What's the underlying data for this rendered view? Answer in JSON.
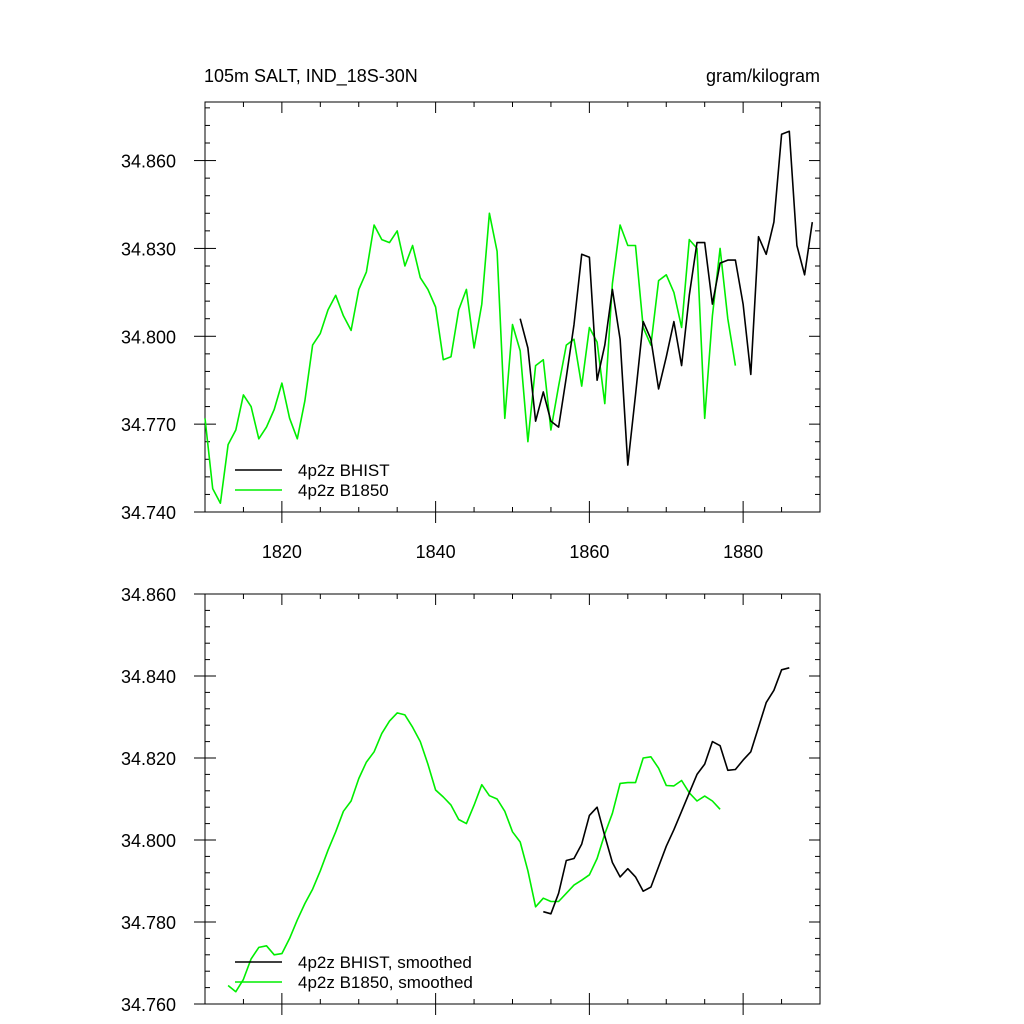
{
  "chart_data": [
    {
      "type": "line",
      "title_left": "105m SALT, IND_18S-30N",
      "title_right": "gram/kilogram",
      "xlim": [
        1810,
        1890
      ],
      "ylim": [
        34.74,
        34.88
      ],
      "x_ticks": [
        1820,
        1840,
        1860,
        1880
      ],
      "x_tick_labels": [
        "1820",
        "1840",
        "1860",
        "1880"
      ],
      "y_ticks": [
        34.74,
        34.77,
        34.8,
        34.83,
        34.86
      ],
      "y_tick_labels": [
        "34.740",
        "34.770",
        "34.800",
        "34.830",
        "34.860"
      ],
      "legend_position": "bottom-left",
      "series": [
        {
          "name": "4p2z BHIST",
          "color": "#000000",
          "x": [
            1851,
            1852,
            1853,
            1854,
            1855,
            1856,
            1857,
            1858,
            1859,
            1860,
            1861,
            1862,
            1863,
            1864,
            1865,
            1866,
            1867,
            1868,
            1869,
            1870,
            1871,
            1872,
            1873,
            1874,
            1875,
            1876,
            1877,
            1878,
            1879,
            1880,
            1881,
            1882,
            1883,
            1884,
            1885,
            1886,
            1887,
            1888,
            1889
          ],
          "values": [
            34.806,
            34.796,
            34.771,
            34.781,
            34.771,
            34.769,
            34.786,
            34.804,
            34.828,
            34.827,
            34.785,
            34.797,
            34.816,
            34.799,
            34.756,
            34.78,
            34.805,
            34.799,
            34.782,
            34.793,
            34.805,
            34.79,
            34.814,
            34.832,
            34.832,
            34.811,
            34.825,
            34.826,
            34.826,
            34.811,
            34.787,
            34.834,
            34.828,
            34.839,
            34.869,
            34.87,
            34.831,
            34.821,
            34.839
          ]
        },
        {
          "name": "4p2z B1850",
          "color": "#00ee00",
          "x": [
            1810,
            1811,
            1812,
            1813,
            1814,
            1815,
            1816,
            1817,
            1818,
            1819,
            1820,
            1821,
            1822,
            1823,
            1824,
            1825,
            1826,
            1827,
            1828,
            1829,
            1830,
            1831,
            1832,
            1833,
            1834,
            1835,
            1836,
            1837,
            1838,
            1839,
            1840,
            1841,
            1842,
            1843,
            1844,
            1845,
            1846,
            1847,
            1848,
            1849,
            1850,
            1851,
            1852,
            1853,
            1854,
            1855,
            1856,
            1857,
            1858,
            1859,
            1860,
            1861,
            1862,
            1863,
            1864,
            1865,
            1866,
            1867,
            1868,
            1869,
            1870,
            1871,
            1872,
            1873,
            1874,
            1875,
            1876,
            1877,
            1878,
            1879
          ],
          "values": [
            34.772,
            34.748,
            34.743,
            34.763,
            34.768,
            34.78,
            34.776,
            34.765,
            34.769,
            34.775,
            34.784,
            34.772,
            34.765,
            34.778,
            34.797,
            34.801,
            34.809,
            34.814,
            34.807,
            34.802,
            34.816,
            34.822,
            34.838,
            34.833,
            34.832,
            34.836,
            34.824,
            34.831,
            34.82,
            34.816,
            34.81,
            34.792,
            34.793,
            34.809,
            34.816,
            34.796,
            34.811,
            34.842,
            34.829,
            34.772,
            34.804,
            34.795,
            34.764,
            34.79,
            34.792,
            34.768,
            34.783,
            34.797,
            34.799,
            34.783,
            34.803,
            34.798,
            34.777,
            34.818,
            34.838,
            34.831,
            34.831,
            34.803,
            34.797,
            34.819,
            34.821,
            34.815,
            34.803,
            34.833,
            34.83,
            34.772,
            34.807,
            34.83,
            34.806,
            34.79
          ]
        }
      ]
    },
    {
      "type": "line",
      "xlim": [
        1810,
        1890
      ],
      "ylim": [
        34.76,
        34.86
      ],
      "x_ticks": [
        1820,
        1840,
        1860,
        1880
      ],
      "y_ticks": [
        34.76,
        34.78,
        34.8,
        34.82,
        34.84,
        34.86
      ],
      "y_tick_labels": [
        "34.760",
        "34.780",
        "34.800",
        "34.820",
        "34.840",
        "34.860"
      ],
      "legend_position": "bottom-left",
      "series": [
        {
          "name": "4p2z BHIST, smoothed",
          "color": "#000000",
          "x": [
            1854,
            1855,
            1856,
            1857,
            1858,
            1859,
            1860,
            1861,
            1862,
            1863,
            1864,
            1865,
            1866,
            1867,
            1868,
            1869,
            1870,
            1871,
            1872,
            1873,
            1874,
            1875,
            1876,
            1877,
            1878,
            1879,
            1880,
            1881,
            1882,
            1883,
            1884,
            1885,
            1886
          ],
          "values": [
            34.7825,
            34.782,
            34.787,
            34.795,
            34.7955,
            34.799,
            34.806,
            34.808,
            34.801,
            34.7945,
            34.791,
            34.793,
            34.791,
            34.7875,
            34.7885,
            34.7935,
            34.7985,
            34.8025,
            34.807,
            34.8115,
            34.816,
            34.8185,
            34.824,
            34.823,
            34.817,
            34.8172,
            34.8195,
            34.8215,
            34.8275,
            34.8335,
            34.8365,
            34.8415,
            34.842
          ]
        },
        {
          "name": "4p2z B1850, smoothed",
          "color": "#00ee00",
          "x": [
            1813,
            1814,
            1815,
            1816,
            1817,
            1818,
            1819,
            1820,
            1821,
            1822,
            1823,
            1824,
            1825,
            1826,
            1827,
            1828,
            1829,
            1830,
            1831,
            1832,
            1833,
            1834,
            1835,
            1836,
            1837,
            1838,
            1839,
            1840,
            1841,
            1842,
            1843,
            1844,
            1845,
            1846,
            1847,
            1848,
            1849,
            1850,
            1851,
            1852,
            1853,
            1854,
            1855,
            1856,
            1857,
            1858,
            1859,
            1860,
            1861,
            1862,
            1863,
            1864,
            1865,
            1866,
            1867,
            1868,
            1869,
            1870,
            1871,
            1872,
            1873,
            1874,
            1875,
            1876,
            1877
          ],
          "values": [
            34.7645,
            34.763,
            34.766,
            34.771,
            34.7738,
            34.7742,
            34.772,
            34.7723,
            34.776,
            34.7805,
            34.7845,
            34.788,
            34.7925,
            34.7975,
            34.802,
            34.807,
            34.8095,
            34.815,
            34.819,
            34.8215,
            34.826,
            34.829,
            34.831,
            34.8305,
            34.8275,
            34.824,
            34.8185,
            34.8122,
            34.8105,
            34.8085,
            34.805,
            34.804,
            34.8085,
            34.8135,
            34.8108,
            34.81,
            34.807,
            34.802,
            34.7995,
            34.7925,
            34.7837,
            34.7858,
            34.785,
            34.785,
            34.787,
            34.789,
            34.7902,
            34.7915,
            34.7955,
            34.8015,
            34.8065,
            34.8138,
            34.814,
            34.814,
            34.82,
            34.8203,
            34.8175,
            34.8133,
            34.8132,
            34.8145,
            34.8115,
            34.8095,
            34.8107,
            34.8095,
            34.8075
          ]
        }
      ]
    }
  ]
}
